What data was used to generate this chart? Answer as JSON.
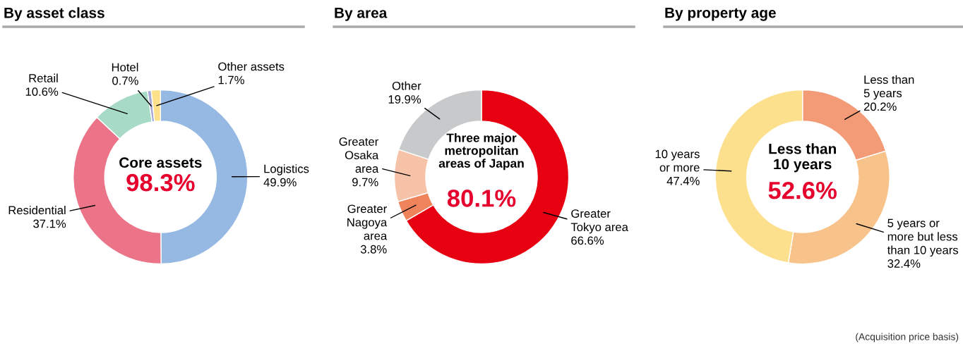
{
  "chart_data": [
    {
      "type": "donut",
      "title": "By asset class",
      "categories": [
        "Logistics",
        "Residential",
        "Retail",
        "Hotel",
        "Other assets"
      ],
      "values": [
        49.9,
        37.1,
        10.6,
        0.7,
        1.7
      ],
      "value_labels": [
        "49.9%",
        "37.1%",
        "10.6%",
        "0.7%",
        "1.7%"
      ],
      "colors": [
        "#95b9e2",
        "#ec7489",
        "#a8dbc6",
        "#a7a9d4",
        "#fde08a"
      ],
      "legend": false,
      "annotations": [
        "Core assets",
        "98.3%"
      ]
    },
    {
      "type": "donut",
      "title": "By area",
      "categories": [
        "Greater\nTokyo area",
        "Greater\nNagoya\narea",
        "Greater\nOsaka\narea",
        "Other"
      ],
      "values": [
        66.6,
        3.8,
        9.7,
        19.9
      ],
      "value_labels": [
        "66.6%",
        "3.8%",
        "9.7%",
        "19.9%"
      ],
      "colors": [
        "#e60012",
        "#ef845c",
        "#f7c3a8",
        "#c8c9ca"
      ],
      "legend": false,
      "annotations": [
        "Three major\nmetropolitan\nareas of Japan",
        "80.1%"
      ]
    },
    {
      "type": "donut",
      "title": "By property age",
      "categories": [
        "Less than\n5 years",
        "5 years or\nmore but less\nthan 10 years",
        "10 years\nor more"
      ],
      "values": [
        20.2,
        32.4,
        47.4
      ],
      "value_labels": [
        "20.2%",
        "32.4%",
        "47.4%"
      ],
      "colors": [
        "#f29b76",
        "#f8c38a",
        "#fde08e"
      ],
      "legend": false,
      "annotations": [
        "Less than\n10 years",
        "52.6%",
        "(Acquisition price basis)"
      ]
    }
  ]
}
